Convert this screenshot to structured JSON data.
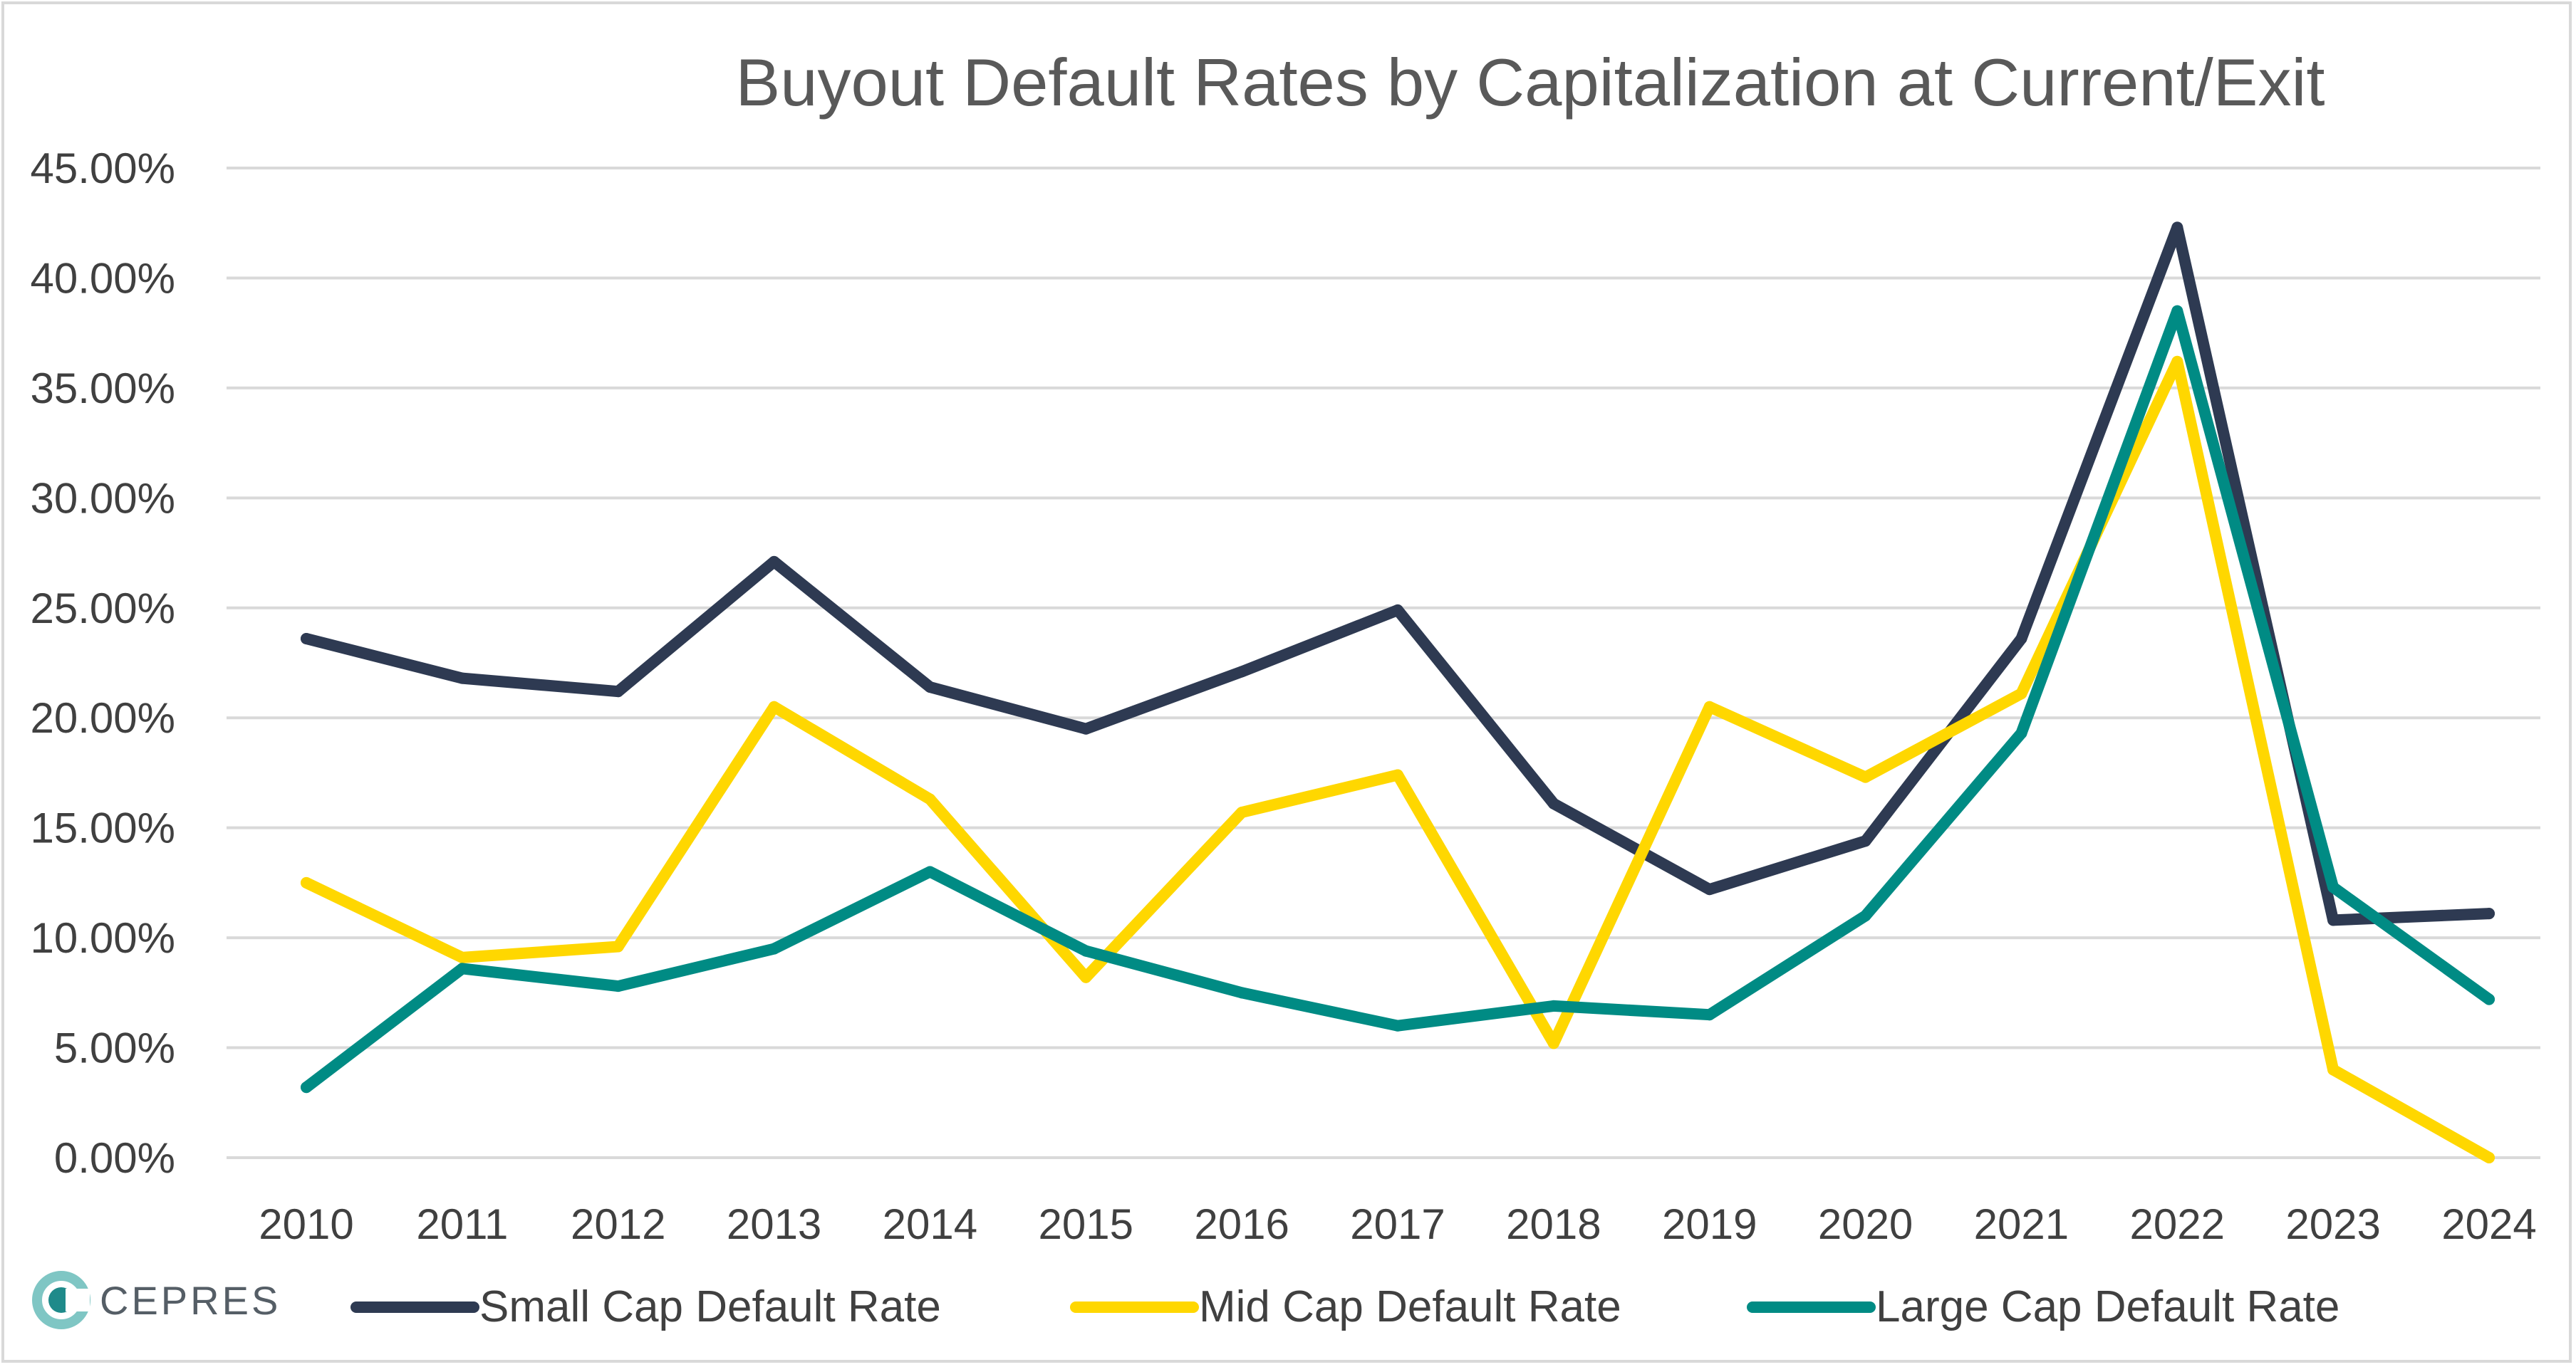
{
  "logo": {
    "text": "CEPRES",
    "colors": {
      "primary": "#1f8a8a",
      "secondary": "#7fc6c4"
    }
  },
  "chart_data": {
    "type": "line",
    "title": "Buyout Default Rates by Capitalization at Current/Exit",
    "xlabel": "",
    "ylabel": "",
    "categories": [
      "2010",
      "2011",
      "2012",
      "2013",
      "2014",
      "2015",
      "2016",
      "2017",
      "2018",
      "2019",
      "2020",
      "2021",
      "2022",
      "2023",
      "2024"
    ],
    "ylim": [
      0,
      45
    ],
    "yticks": [
      0,
      5,
      10,
      15,
      20,
      25,
      30,
      35,
      40,
      45
    ],
    "ytick_labels": [
      "0.00%",
      "5.00%",
      "10.00%",
      "15.00%",
      "20.00%",
      "25.00%",
      "30.00%",
      "35.00%",
      "40.00%",
      "45.00%"
    ],
    "grid": true,
    "legend_position": "bottom",
    "series": [
      {
        "name": "Small Cap Default Rate",
        "color": "#2e3a52",
        "values": [
          23.6,
          21.8,
          21.2,
          27.1,
          21.4,
          19.5,
          22.1,
          24.9,
          16.1,
          12.2,
          14.4,
          23.6,
          42.3,
          10.8,
          11.1
        ]
      },
      {
        "name": "Mid Cap Default Rate",
        "color": "#ffd700",
        "values": [
          12.5,
          9.1,
          9.6,
          20.5,
          16.3,
          8.2,
          15.7,
          17.4,
          5.2,
          20.5,
          17.3,
          21.1,
          36.2,
          4.0,
          0.0
        ]
      },
      {
        "name": "Large Cap Default Rate",
        "color": "#008b84",
        "values": [
          3.2,
          8.6,
          7.8,
          9.5,
          13.0,
          9.4,
          7.5,
          6.0,
          6.9,
          6.5,
          11.0,
          19.3,
          38.5,
          12.3,
          7.2
        ]
      }
    ]
  }
}
